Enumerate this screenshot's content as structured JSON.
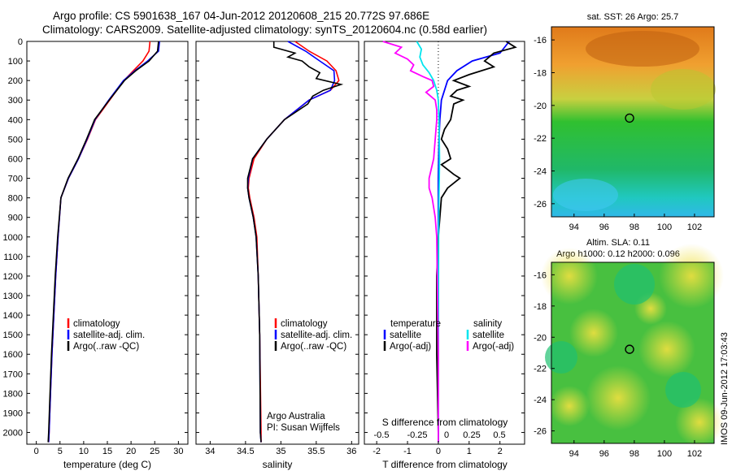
{
  "header": {
    "line1": "Argo profile: CS 5901638_167 04-Jun-2012 20120608_215 20.772S 97.686E",
    "line2": "Climatology: CARS2009. Satellite-adjusted climatology: synTS_20120604.nc (0.58d earlier)"
  },
  "colors": {
    "climatology": "#ff0000",
    "satellite": "#0000ff",
    "argo": "#000000",
    "salinity_sat": "#00e5ee",
    "salinity_argo": "#ff00ff"
  },
  "depth_ticks": [
    "0",
    "100",
    "200",
    "300",
    "400",
    "500",
    "600",
    "700",
    "800",
    "900",
    "1000",
    "1100",
    "1200",
    "1300",
    "1400",
    "1500",
    "1600",
    "1700",
    "1800",
    "1900",
    "2000"
  ],
  "temperature_panel": {
    "xlabel": "temperature (deg C)",
    "xticks": [
      "0",
      "5",
      "10",
      "15",
      "20",
      "25",
      "30"
    ],
    "legend": [
      "climatology",
      "satellite-adj. clim.",
      "Argo(..raw -QC)"
    ]
  },
  "salinity_panel": {
    "xlabel": "salinity",
    "xticks": [
      "34",
      "34.5",
      "35",
      "35.5",
      "36"
    ],
    "legend": [
      "climatology",
      "satellite-adj. clim.",
      "Argo(..raw -QC)"
    ],
    "note1": "Argo Australia",
    "note2": "PI: Susan Wijffels"
  },
  "difference_panel": {
    "xlabel_bottom": "T difference from climatology",
    "xticks_bottom": [
      "-2",
      "-1",
      "0",
      "1",
      "2"
    ],
    "xlabel_top": "S difference from climatology",
    "xticks_top": [
      "-0.5",
      "-0.25",
      "0",
      "0.25",
      "0.5"
    ],
    "legend_temp_title": "temperature",
    "legend_temp": [
      "satellite",
      "Argo(-adj)"
    ],
    "legend_sal_title": "salinity",
    "legend_sal": [
      "satellite",
      "Argo(-adj)"
    ]
  },
  "sst_map": {
    "title": "sat. SST: 26 Argo: 25.7",
    "yticks": [
      "-16",
      "-18",
      "-20",
      "-22",
      "-24",
      "-26"
    ],
    "xticks": [
      "94",
      "96",
      "98",
      "100",
      "102"
    ]
  },
  "sla_map": {
    "title1": "Altim. SLA: 0.11",
    "title2": "Argo h1000: 0.12 h2000: 0.096",
    "yticks": [
      "-16",
      "-18",
      "-20",
      "-22",
      "-24",
      "-26"
    ],
    "xticks": [
      "94",
      "96",
      "98",
      "100",
      "102"
    ]
  },
  "footer_stamp": "IMOS 09-Jun-2012 17:03:43",
  "chart_data": [
    {
      "type": "line",
      "panel": "temperature",
      "xlabel": "temperature (deg C)",
      "ylabel": "",
      "xlim": [
        -2,
        32
      ],
      "ylim": [
        2060,
        0
      ],
      "series": [
        {
          "name": "climatology",
          "depth": [
            0,
            50,
            100,
            150,
            200,
            300,
            400,
            500,
            600,
            700,
            800,
            1000,
            1200,
            1400,
            1600,
            1800,
            2000,
            2050
          ],
          "values": [
            24,
            23.8,
            22.5,
            20.5,
            18.5,
            15.5,
            12.5,
            10.8,
            8.9,
            6.8,
            5.2,
            4.6,
            4.1,
            3.7,
            3.3,
            3.0,
            2.7,
            2.6
          ]
        },
        {
          "name": "satellite-adj. clim.",
          "depth": [
            0,
            50,
            100,
            150,
            200,
            300,
            400,
            500,
            600,
            700,
            800,
            1000,
            1200,
            1400,
            1600,
            1800,
            2000,
            2050
          ],
          "values": [
            26,
            25.8,
            23.5,
            20.8,
            18.4,
            15.3,
            12.4,
            10.7,
            8.9,
            6.8,
            5.2,
            4.6,
            4.1,
            3.7,
            3.3,
            3.0,
            2.7,
            2.6
          ]
        },
        {
          "name": "Argo(..raw -QC)",
          "depth": [
            0,
            50,
            100,
            150,
            200,
            300,
            400,
            500,
            600,
            700,
            800,
            1000,
            1200,
            1400,
            1600,
            1800,
            2000,
            2050
          ],
          "values": [
            25.8,
            25.6,
            23.8,
            21,
            18.6,
            15.4,
            12.3,
            10.6,
            8.8,
            6.7,
            5.2,
            4.5,
            4.0,
            3.6,
            3.2,
            2.9,
            2.6,
            2.5
          ]
        }
      ]
    },
    {
      "type": "line",
      "panel": "salinity",
      "xlabel": "salinity",
      "ylabel": "",
      "xlim": [
        33.8,
        36.1
      ],
      "ylim": [
        2060,
        0
      ],
      "series": [
        {
          "name": "climatology",
          "depth": [
            0,
            50,
            100,
            150,
            200,
            250,
            300,
            400,
            500,
            600,
            700,
            750,
            800,
            900,
            1000,
            1200,
            1500,
            2000,
            2050
          ],
          "values": [
            35.2,
            35.4,
            35.65,
            35.78,
            35.82,
            35.7,
            35.4,
            35.05,
            34.8,
            34.62,
            34.55,
            34.54,
            34.56,
            34.62,
            34.66,
            34.68,
            34.7,
            34.72,
            34.72
          ]
        },
        {
          "name": "satellite-adj. clim.",
          "depth": [
            0,
            50,
            100,
            150,
            200,
            250,
            300,
            400,
            500,
            600,
            700,
            750,
            800,
            900,
            1000,
            1200,
            1500,
            2000,
            2050
          ],
          "values": [
            35.1,
            35.35,
            35.55,
            35.75,
            35.76,
            35.7,
            35.4,
            35.05,
            34.8,
            34.6,
            34.54,
            34.53,
            34.55,
            34.61,
            34.65,
            34.68,
            34.7,
            34.71,
            34.72
          ]
        },
        {
          "name": "Argo(..raw -QC)",
          "depth": [
            0,
            30,
            60,
            80,
            100,
            130,
            160,
            190,
            220,
            250,
            280,
            320,
            400,
            500,
            600,
            700,
            750,
            800,
            900,
            1000,
            1200,
            1500,
            2000,
            2050
          ],
          "values": [
            34.9,
            34.9,
            35.2,
            35.1,
            35.3,
            35.4,
            35.55,
            35.5,
            35.85,
            35.6,
            35.45,
            35.38,
            35.05,
            34.8,
            34.6,
            34.53,
            34.53,
            34.55,
            34.61,
            34.65,
            34.68,
            34.7,
            34.71,
            34.72
          ]
        }
      ]
    },
    {
      "type": "line",
      "panel": "difference",
      "xlabel": "T difference from climatology",
      "x2label": "S difference from climatology",
      "xlim": [
        -2.4,
        2.8
      ],
      "ylim": [
        2060,
        0
      ],
      "series": [
        {
          "name": "temperature satellite",
          "depth": [
            0,
            60,
            100,
            150,
            200,
            300,
            400,
            500,
            700,
            900,
            1200,
            1600,
            2050
          ],
          "values": [
            2.3,
            2.0,
            1.1,
            0.6,
            0.3,
            0.1,
            0.05,
            0.02,
            0,
            0,
            0,
            0,
            0
          ]
        },
        {
          "name": "temperature Argo(-adj)",
          "depth": [
            0,
            30,
            60,
            100,
            130,
            170,
            200,
            230,
            250,
            280,
            300,
            320,
            400,
            450,
            500,
            550,
            600,
            630,
            680,
            700,
            750,
            800,
            900,
            1000,
            1200,
            1600,
            2000,
            2050
          ],
          "values": [
            2.2,
            2.5,
            1.8,
            1.5,
            1.8,
            1.0,
            0.5,
            1.0,
            0.6,
            0.4,
            0.8,
            0.5,
            0.4,
            0.2,
            0.1,
            0.3,
            0.4,
            0.1,
            0.5,
            0.7,
            0.3,
            0.1,
            0.05,
            0.0,
            -0.05,
            -0.05,
            0,
            0
          ]
        },
        {
          "name": "salinity satellite",
          "depth": [
            0,
            40,
            80,
            120,
            160,
            200,
            250,
            300,
            400,
            500,
            600,
            700,
            800,
            1000,
            1600,
            2050
          ],
          "values": [
            -0.7,
            -0.55,
            -0.6,
            -0.5,
            -0.3,
            -0.15,
            -0.05,
            0,
            0.02,
            0.03,
            0.04,
            0.03,
            0.02,
            0.01,
            0,
            0
          ]
        },
        {
          "name": "salinity Argo(-adj)",
          "depth": [
            0,
            30,
            60,
            90,
            120,
            150,
            180,
            200,
            230,
            260,
            300,
            350,
            400,
            500,
            600,
            700,
            750,
            800,
            900,
            1000,
            1600,
            2050
          ],
          "values": [
            -1.8,
            -1.2,
            -1.4,
            -1.0,
            -0.8,
            -0.9,
            -0.5,
            -0.2,
            -0.15,
            -0.4,
            -0.1,
            -0.05,
            -0.05,
            -0.1,
            -0.15,
            -0.3,
            -0.3,
            -0.2,
            -0.1,
            -0.05,
            0,
            0
          ]
        }
      ]
    },
    {
      "type": "heatmap",
      "panel": "sst_map",
      "title": "sat. SST: 26 Argo: 25.7",
      "xlim": [
        92.5,
        103.3
      ],
      "ylim": [
        -26.8,
        -15.2
      ],
      "marker": {
        "lon": 97.686,
        "lat": -20.772
      }
    },
    {
      "type": "heatmap",
      "panel": "sla_map",
      "title": "Altim. SLA: 0.11",
      "xlim": [
        92.5,
        103.3
      ],
      "ylim": [
        -26.8,
        -15.2
      ],
      "marker": {
        "lon": 97.686,
        "lat": -20.772
      }
    }
  ]
}
